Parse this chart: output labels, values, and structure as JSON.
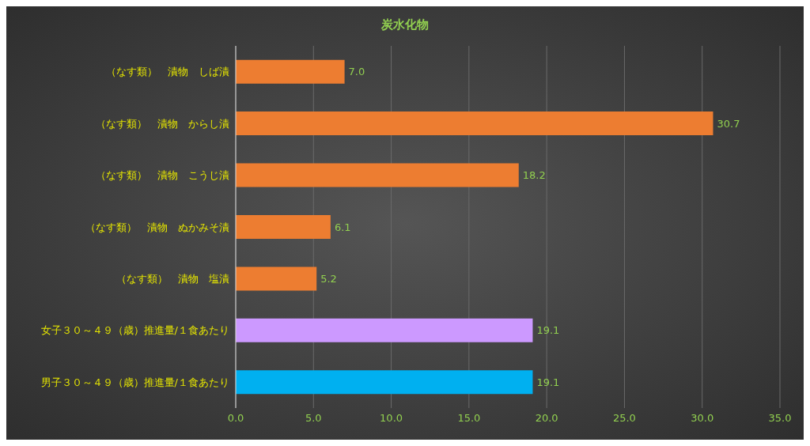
{
  "chart_data": {
    "type": "bar",
    "orientation": "horizontal",
    "title": "炭水化物",
    "categories": [
      "（なす類）　漬物　しば漬",
      "（なす類）　漬物　からし漬",
      "（なす類）　漬物　こうじ漬",
      "（なす類）　漬物　ぬかみそ漬",
      "（なす類）　漬物　塩漬",
      "女子３０～４９（歳）推進量/１食あたり",
      "男子３０～４９（歳）推進量/１食あたり"
    ],
    "values": [
      7.0,
      30.7,
      18.2,
      6.1,
      5.2,
      19.1,
      19.1
    ],
    "value_labels": [
      "7.0",
      "30.7",
      "18.2",
      "6.1",
      "5.2",
      "19.1",
      "19.1"
    ],
    "colors": [
      "#ed7d31",
      "#ed7d31",
      "#ed7d31",
      "#ed7d31",
      "#ed7d31",
      "#cc99ff",
      "#00b0f0"
    ],
    "xlim": [
      0,
      35
    ],
    "xticks": [
      {
        "value": 0,
        "label": "0.0"
      },
      {
        "value": 5,
        "label": "5.0"
      },
      {
        "value": 10,
        "label": "10.0"
      },
      {
        "value": 15,
        "label": "15.0"
      },
      {
        "value": 20,
        "label": "20.0"
      },
      {
        "value": 25,
        "label": "25.0"
      },
      {
        "value": 30,
        "label": "30.0"
      },
      {
        "value": 35,
        "label": "35.0"
      }
    ],
    "grid": "x"
  }
}
